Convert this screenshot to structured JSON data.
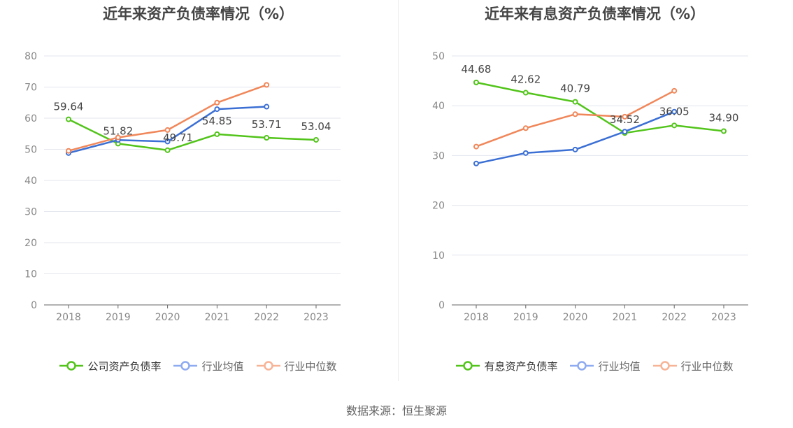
{
  "source_text": "数据来源：恒生聚源",
  "chart_data": [
    {
      "type": "line",
      "title": "近年来资产负债率情况（%）",
      "categories": [
        "2018",
        "2019",
        "2020",
        "2021",
        "2022",
        "2023"
      ],
      "yticks": [
        "0",
        "10",
        "20",
        "30",
        "40",
        "50",
        "60",
        "70",
        "80"
      ],
      "ylim": [
        0,
        80
      ],
      "grid": true,
      "legend_position": "bottom",
      "series": [
        {
          "name": "公司资产负债率",
          "color": "#52c41a",
          "primary": true,
          "values": [
            59.64,
            51.82,
            49.71,
            54.85,
            53.71,
            53.04
          ],
          "labels": [
            "59.64",
            "51.82",
            "49.71",
            "54.85",
            "53.71",
            "53.04"
          ]
        },
        {
          "name": "行业均值",
          "color": "#3b6fd4",
          "legend_color": "#8eaaf0",
          "values": [
            48.8,
            53.0,
            52.5,
            62.9,
            63.7,
            null
          ]
        },
        {
          "name": "行业中位数",
          "color": "#f0875a",
          "legend_color": "#f7b396",
          "values": [
            49.5,
            53.8,
            56.2,
            65.0,
            70.7,
            null
          ]
        }
      ]
    },
    {
      "type": "line",
      "title": "近年来有息资产负债率情况（%）",
      "categories": [
        "2018",
        "2019",
        "2020",
        "2021",
        "2022",
        "2023"
      ],
      "yticks": [
        "0",
        "10",
        "20",
        "30",
        "40",
        "50"
      ],
      "ylim": [
        0,
        50
      ],
      "grid": true,
      "legend_position": "bottom",
      "series": [
        {
          "name": "有息资产负债率",
          "color": "#52c41a",
          "primary": true,
          "values": [
            44.68,
            42.62,
            40.79,
            34.52,
            36.05,
            34.9
          ],
          "labels": [
            "44.68",
            "42.62",
            "40.79",
            "34.52",
            "36.05",
            "34.90"
          ]
        },
        {
          "name": "行业均值",
          "color": "#3b6fd4",
          "legend_color": "#8eaaf0",
          "values": [
            28.4,
            30.5,
            31.2,
            34.8,
            38.8,
            null
          ]
        },
        {
          "name": "行业中位数",
          "color": "#f0875a",
          "legend_color": "#f7b396",
          "values": [
            31.8,
            35.5,
            38.3,
            37.8,
            43.0,
            null
          ]
        }
      ]
    }
  ]
}
